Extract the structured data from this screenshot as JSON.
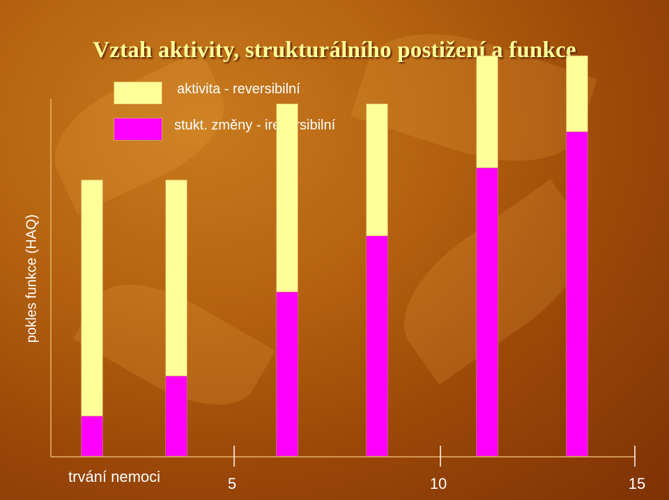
{
  "chart_data": {
    "type": "bar",
    "stacked": true,
    "title": "Vztah aktivity, strukturálního postižení a funkce",
    "xlabel": "trvání nemoci",
    "ylabel": "pokles funkce (HAQ)",
    "x_ticks": [
      "5",
      "10",
      "15"
    ],
    "series": [
      {
        "name": "stukt. změny - ireversibilní",
        "color": "#ff00ff",
        "values": [
          0.1,
          0.2,
          0.41,
          0.55,
          0.72,
          0.81
        ]
      },
      {
        "name": "aktivita - reversibilní",
        "color": "#ffff99",
        "values": [
          0.59,
          0.49,
          0.47,
          0.33,
          0.28,
          0.19
        ]
      }
    ],
    "ylim": [
      0,
      1
    ],
    "grid": false,
    "legend_position": "top-left"
  }
}
